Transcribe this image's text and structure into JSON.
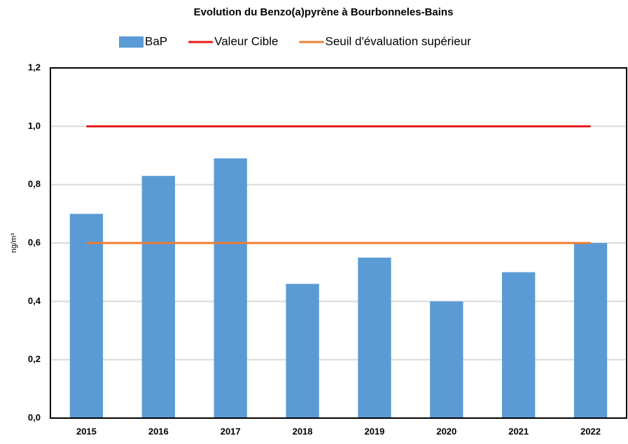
{
  "chart_data": {
    "type": "bar",
    "title": "Evolution du Benzo(a)pyrène à Bourbonneles-Bains",
    "y_label": "ng/m³",
    "categories": [
      "2015",
      "2016",
      "2017",
      "2018",
      "2019",
      "2020",
      "2021",
      "2022"
    ],
    "series": [
      {
        "name": "BaP",
        "type": "bar",
        "color": "#5b9bd5",
        "values": [
          0.7,
          0.83,
          0.89,
          0.46,
          0.55,
          0.4,
          0.5,
          0.6
        ]
      },
      {
        "name": "Valeur Cible",
        "type": "line",
        "color": "#e31a1c",
        "values": [
          1.0,
          1.0,
          1.0,
          1.0,
          1.0,
          1.0,
          1.0,
          1.0
        ]
      },
      {
        "name": "Seuil d'évaluation supérieur",
        "type": "line",
        "color": "#ed7d31",
        "values": [
          0.6,
          0.6,
          0.6,
          0.6,
          0.6,
          0.6,
          0.6,
          0.6
        ]
      }
    ],
    "ylim": [
      0,
      1.2
    ],
    "yticks": [
      {
        "value": 0,
        "label": "0,0"
      },
      {
        "value": 0.2,
        "label": "0,2"
      },
      {
        "value": 0.4,
        "label": "0,4"
      },
      {
        "value": 0.6,
        "label": "0,6"
      },
      {
        "value": 0.8,
        "label": "0,8"
      },
      {
        "value": 1.0,
        "label": "1,0"
      },
      {
        "value": 1.2,
        "label": "1,2"
      }
    ],
    "grid": true,
    "legend": "top"
  }
}
